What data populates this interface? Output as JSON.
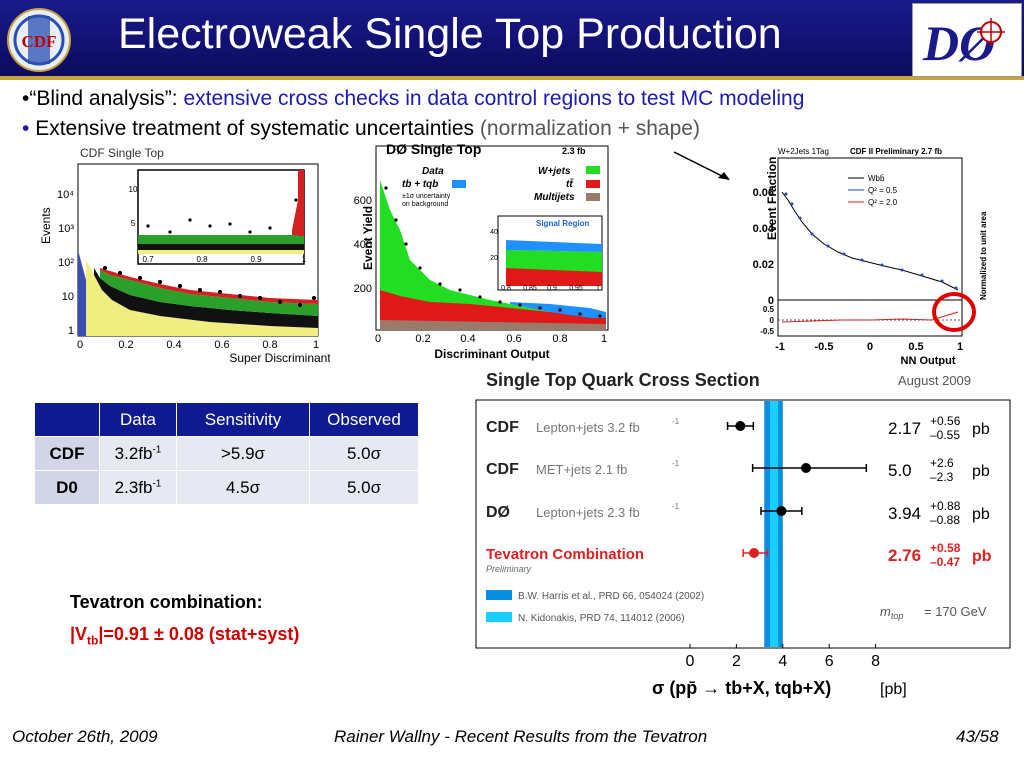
{
  "header": {
    "title": "Electroweak Single Top Production",
    "cdf_logo_text": "CDF",
    "d0_logo_text": "DØ"
  },
  "bullets": [
    {
      "bullet": "•",
      "lead": "“Blind analysis”:",
      "rest": "extensive cross checks in data control regions to test MC modeling"
    },
    {
      "bullet": "•",
      "lead": "Extensive treatment of systematic uncertainties",
      "rest": "(normalization + shape)"
    }
  ],
  "cdf_plot": {
    "caption": "CDF Single Top",
    "ylabel": "Events",
    "xlabel": "Super Discriminant",
    "xticks": [
      "0",
      "0.2",
      "0.4",
      "0.6",
      "0.8",
      "1"
    ],
    "yticks": [
      "1",
      "10",
      "10²",
      "10³",
      "10⁴"
    ],
    "inset_xticks": [
      "0.7",
      "0.8",
      "0.9",
      "1"
    ],
    "inset_yticks": [
      "5",
      "10"
    ]
  },
  "d0_plot": {
    "ylabel": "Event Yield",
    "title": "DØ Single Top",
    "lumi": "2.3 fb",
    "xlabel": "Discriminant Output",
    "xticks": [
      "0",
      "0.2",
      "0.4",
      "0.6",
      "0.8",
      "1"
    ],
    "yticks": [
      "200",
      "400",
      "600"
    ],
    "legend": [
      "Data",
      "tb + tqb",
      "±1σ uncertainty",
      "on background",
      "W+jets",
      "tt̄",
      "Multijets"
    ],
    "inset_label": "Signal Region",
    "inset_xticks": [
      "0.8",
      "0.85",
      "0.9",
      "0.95",
      "1"
    ],
    "inset_yticks": [
      "20",
      "40"
    ]
  },
  "nn_plot": {
    "tag": "W+2Jets 1Tag",
    "title": "CDF II Preliminary 2.7 fb",
    "ylabel": "Event Fraction",
    "side_label": "Normalized to unit area",
    "xlabel": "NN Output",
    "legend": [
      "Wbb̄",
      "Q² = 0.5",
      "Q² = 2.0"
    ],
    "yticks": [
      "0",
      "0.02",
      "0.04",
      "0.06"
    ],
    "ratio_ticks": [
      "0.5",
      "0",
      "-0.5"
    ],
    "xticks": [
      "-1",
      "-0.5",
      "0",
      "0.5",
      "1"
    ]
  },
  "xsec": {
    "title": "Single Top Quark Cross Section",
    "date": "August 2009",
    "rows": [
      {
        "exp": "CDF",
        "channel": "Lepton+jets",
        "lumi": "3.2 fb",
        "value": "2.17",
        "up": "+0.56",
        "down": "–0.55",
        "unit": "pb"
      },
      {
        "exp": "CDF",
        "channel": "MET+jets",
        "lumi": "2.1 fb",
        "value": "5.0",
        "up": "+2.6",
        "down": "–2.3",
        "unit": "pb"
      },
      {
        "exp": "DØ",
        "channel": "Lepton+jets",
        "lumi": "2.3 fb",
        "value": "3.94",
        "up": "+0.88",
        "down": "–0.88",
        "unit": "pb"
      },
      {
        "exp": "Tevatron Combination",
        "channel": "",
        "lumi": "",
        "value": "2.76",
        "up": "+0.58",
        "down": "–0.47",
        "unit": "pb"
      }
    ],
    "preliminary": "Preliminary",
    "theory": [
      "B.W. Harris et al., PRD 66, 054024 (2002)",
      "N. Kidonakis, PRD 74, 114012 (2006)"
    ],
    "mtop": "= 170 GeV",
    "xticks": [
      "0",
      "2",
      "4",
      "6",
      "8"
    ],
    "xlabel": "σ (pp̄ → tb+X, tqb+X)",
    "xunit": "[pb]",
    "points": [
      {
        "value": 2.17,
        "low": 1.62,
        "high": 2.73
      },
      {
        "value": 5.0,
        "low": 2.7,
        "high": 7.6
      },
      {
        "value": 3.94,
        "low": 3.06,
        "high": 4.82
      },
      {
        "value": 2.76,
        "low": 2.29,
        "high": 3.34
      }
    ]
  },
  "table": {
    "headers": [
      "",
      "Data",
      "Sensitivity",
      "Observed"
    ],
    "rows": [
      {
        "exp": "CDF",
        "data": "3.2fb",
        "sens": ">5.9σ",
        "obs": "5.0σ"
      },
      {
        "exp": "D0",
        "data": "2.3fb",
        "sens": "4.5σ",
        "obs": "5.0σ"
      }
    ],
    "sup": "-1"
  },
  "tevatron": {
    "line1": "Tevatron combination:",
    "line2": "|=0.91 ± 0.08 (stat+syst)",
    "v": "|V",
    "sub": "tb"
  },
  "footer": {
    "date": "October 26th, 2009",
    "talk": "Rainer Wallny - Recent Results from the Tevatron",
    "page": "43/58"
  },
  "colors": {
    "header": "#101070",
    "accent_gold": "#c8a23c",
    "combination_red": "#e02020",
    "theory_blue1": "#0a8ee0",
    "theory_blue2": "#18d0ff"
  }
}
